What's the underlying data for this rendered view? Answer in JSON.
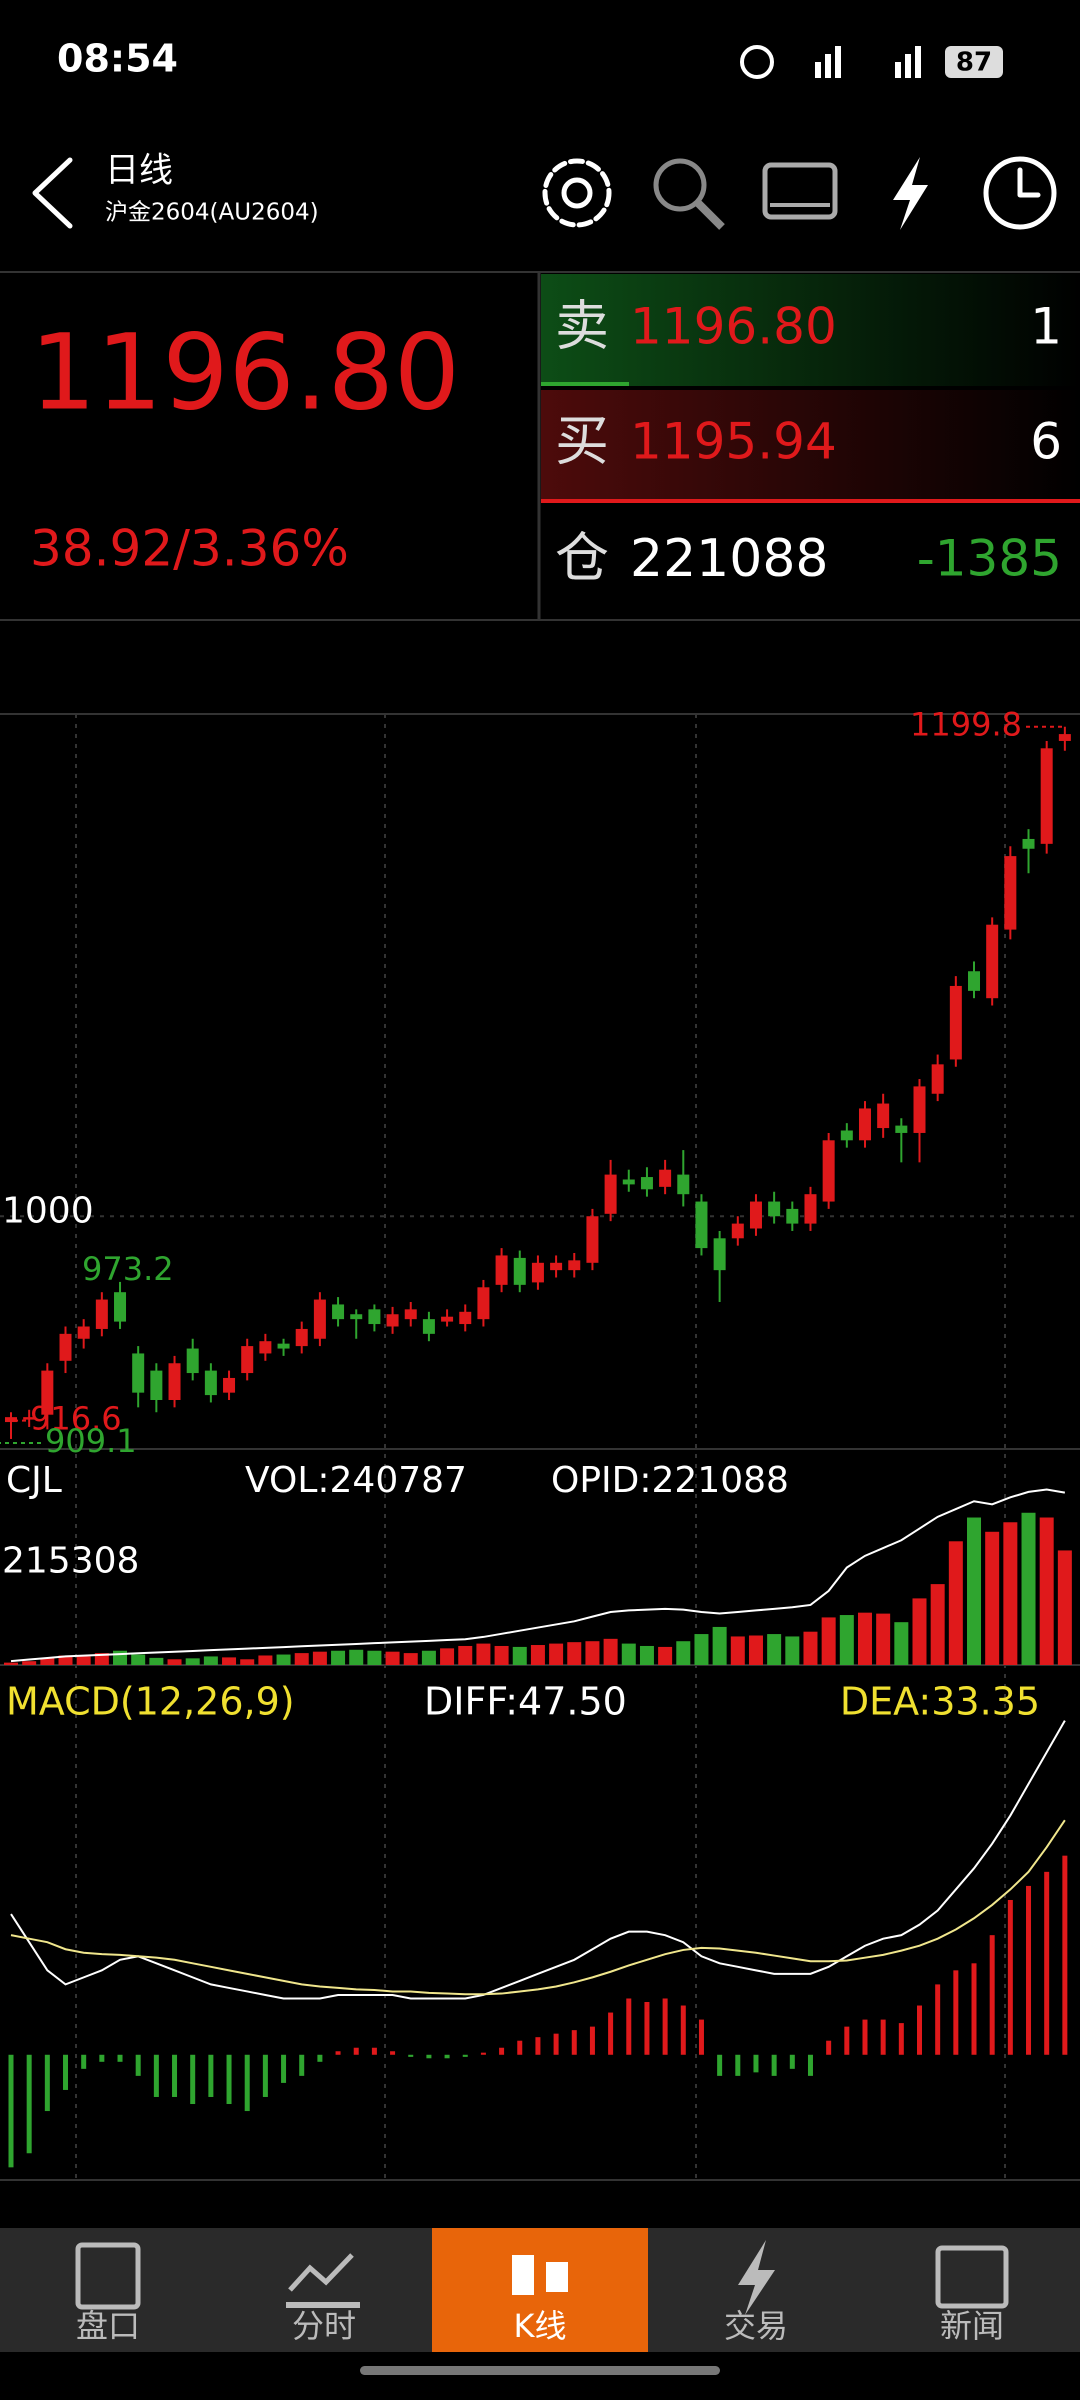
{
  "status": {
    "time": "08:54",
    "battery": "87"
  },
  "header": {
    "title": "日线",
    "subtitle": "沪金2604(AU2604)"
  },
  "quote": {
    "price": "1196.80",
    "change": "38.92/3.36%",
    "ask": {
      "label": "卖",
      "price": "1196.80",
      "qty": "1"
    },
    "bid": {
      "label": "买",
      "price": "1195.94",
      "qty": "6"
    },
    "oi": {
      "label": "仓",
      "value": "221088",
      "change": "-1385"
    }
  },
  "chart_data": [
    {
      "type": "candlestick",
      "up_color": "#e0191b",
      "down_color": "#2fa52f",
      "ylim": [
        905,
        1205
      ],
      "yticks": [
        1000
      ],
      "grid": true,
      "annotations": [
        {
          "value": 1199.8,
          "color": "#e0191b"
        },
        {
          "value": 973.2,
          "color": "#2fa52f"
        },
        {
          "value": 916.6,
          "color": "#e0191b"
        },
        {
          "value": 909.1,
          "color": "#2fa52f"
        }
      ],
      "open": [
        916,
        917,
        919,
        941,
        950,
        954,
        969,
        944,
        937,
        925,
        946,
        937,
        928,
        936,
        944,
        948,
        947,
        950,
        964,
        960,
        962,
        955,
        958,
        958,
        957,
        956,
        958,
        972,
        983,
        973,
        978,
        978,
        981,
        1001,
        1015,
        1016,
        1012,
        1017,
        1006,
        991,
        991,
        995,
        1006,
        1003,
        997,
        1006,
        1035,
        1031,
        1036,
        1037,
        1034,
        1050,
        1064,
        1100,
        1089,
        1117,
        1154,
        1152,
        1194
      ],
      "high": [
        920,
        921,
        940,
        955,
        958,
        969,
        973.2,
        947,
        940,
        943,
        950,
        940,
        937,
        950,
        952,
        950,
        957,
        969,
        967,
        962,
        964,
        963,
        965,
        961,
        962,
        964,
        974,
        987,
        986,
        984,
        984,
        985,
        1003,
        1023,
        1019,
        1020,
        1023,
        1027,
        1009,
        994,
        1000,
        1009,
        1010,
        1006,
        1012,
        1034,
        1038,
        1047,
        1050,
        1040,
        1056,
        1066,
        1098,
        1104,
        1122,
        1151,
        1158,
        1194,
        1199.8
      ],
      "low": [
        909.1,
        914,
        913,
        936,
        946,
        951,
        954,
        922,
        920,
        922,
        933,
        924,
        925,
        933,
        941,
        943,
        944,
        947,
        955,
        950,
        953,
        952,
        955,
        949,
        955,
        953,
        955,
        969,
        969,
        970,
        975,
        975,
        978,
        998,
        1010,
        1008,
        1009,
        1004,
        984,
        965,
        988,
        992,
        997,
        994,
        994,
        1003,
        1028,
        1028,
        1032,
        1022,
        1022,
        1047,
        1061,
        1089,
        1086,
        1113,
        1140,
        1148,
        1190
      ],
      "close": [
        918,
        918,
        937,
        952,
        955,
        966,
        957,
        928,
        925,
        940,
        936,
        927,
        934,
        947,
        949,
        946,
        954,
        966,
        958,
        958,
        956,
        960,
        962,
        952,
        959,
        961,
        971,
        984,
        972,
        981,
        981,
        982,
        1000,
        1017,
        1013,
        1011,
        1019,
        1009,
        987,
        978,
        997,
        1006,
        1000,
        997,
        1009,
        1031,
        1031,
        1044,
        1046,
        1034,
        1053,
        1062,
        1094,
        1092,
        1119,
        1147,
        1150,
        1191,
        1196.8
      ]
    },
    {
      "type": "volume",
      "legend": [
        "CJL",
        "VOL:240787",
        "OPID:221088"
      ],
      "ylim": [
        0,
        454000
      ],
      "yticks": [
        215308
      ],
      "y2lim": [
        0,
        277000
      ],
      "values": [
        5000,
        8000,
        15000,
        20000,
        18000,
        25000,
        30000,
        22000,
        15000,
        12000,
        14000,
        18000,
        16000,
        12000,
        20000,
        22000,
        25000,
        28000,
        30000,
        32000,
        30000,
        28000,
        25000,
        30000,
        35000,
        40000,
        45000,
        40000,
        38000,
        42000,
        45000,
        48000,
        50000,
        55000,
        45000,
        40000,
        38000,
        50000,
        65000,
        80000,
        60000,
        62000,
        65000,
        60000,
        70000,
        100000,
        105000,
        110000,
        108000,
        90000,
        140000,
        170000,
        260000,
        310000,
        280000,
        300000,
        320000,
        310000,
        240787
      ],
      "series": [
        {
          "color": "#ffffff",
          "axis": "y2",
          "values": [
            5000,
            7000,
            9000,
            11000,
            12000,
            13000,
            14000,
            15000,
            16000,
            17000,
            18000,
            19000,
            20000,
            21000,
            22000,
            23000,
            24000,
            25000,
            26000,
            27000,
            28000,
            29000,
            30000,
            31000,
            32000,
            33000,
            36000,
            40000,
            44000,
            48000,
            52000,
            56000,
            62000,
            68000,
            70000,
            71000,
            72000,
            71000,
            68000,
            66000,
            68000,
            70000,
            72000,
            74000,
            77000,
            95000,
            125000,
            140000,
            150000,
            160000,
            175000,
            190000,
            200000,
            210000,
            206000,
            215000,
            222000,
            225000,
            221088
          ]
        }
      ]
    },
    {
      "type": "macd",
      "title": "MACD(12,26,9)",
      "legend": [
        "DIFF:47.50",
        "DEA:33.35"
      ],
      "ylim": [
        -17.8,
        55.4
      ],
      "up_color": "#e0191b",
      "down_color": "#2fa52f",
      "histogram": [
        -16,
        -14,
        -8,
        -5,
        -2,
        -1,
        -1,
        -3,
        -6,
        -6,
        -7,
        -6,
        -7,
        -8,
        -6,
        -4,
        -3,
        -1,
        0.5,
        1,
        1,
        0.5,
        -0.3,
        -0.5,
        -0.5,
        -0.3,
        0.3,
        1,
        2,
        2.5,
        3,
        3.5,
        4,
        6,
        8,
        7.5,
        8,
        7,
        5,
        -3,
        -3,
        -2.5,
        -3,
        -2,
        -3,
        2,
        4,
        5,
        5,
        4.5,
        7,
        10,
        12,
        13,
        17,
        22,
        24,
        26,
        28.3
      ],
      "series": [
        {
          "color": "#ffffff",
          "values": [
            20,
            16,
            12,
            10,
            11,
            12,
            13.5,
            14,
            13,
            12,
            11,
            10,
            9.5,
            9,
            8.5,
            8,
            8,
            8,
            8.5,
            8.5,
            8.5,
            8.5,
            8,
            8,
            8,
            8,
            8.5,
            9.5,
            10.5,
            11.5,
            12.5,
            13.5,
            15,
            16.5,
            17.5,
            17.5,
            17,
            16,
            14,
            13,
            12.5,
            12,
            11.5,
            11.5,
            11.5,
            12.5,
            14,
            15.5,
            16.5,
            17,
            18.5,
            20.5,
            23.5,
            26.5,
            30,
            34,
            38.5,
            43,
            47.5
          ]
        },
        {
          "color": "#f0e68c",
          "values": [
            17,
            16.5,
            16,
            15,
            14.5,
            14.3,
            14.2,
            14,
            13.8,
            13.5,
            13,
            12.5,
            12,
            11.5,
            11,
            10.5,
            10,
            9.7,
            9.5,
            9.3,
            9.2,
            9,
            9,
            8.8,
            8.7,
            8.6,
            8.6,
            8.7,
            9,
            9.3,
            9.7,
            10.3,
            11,
            11.8,
            12.7,
            13.5,
            14.3,
            14.9,
            15.2,
            15.1,
            14.8,
            14.5,
            14.1,
            13.7,
            13.3,
            13.3,
            13.4,
            13.8,
            14.2,
            14.8,
            15.5,
            16.5,
            17.8,
            19.4,
            21.3,
            23.5,
            26,
            29.5,
            33.35
          ]
        }
      ]
    }
  ],
  "tabs": [
    "盘口",
    "分时",
    "K线",
    "交易",
    "新闻"
  ]
}
